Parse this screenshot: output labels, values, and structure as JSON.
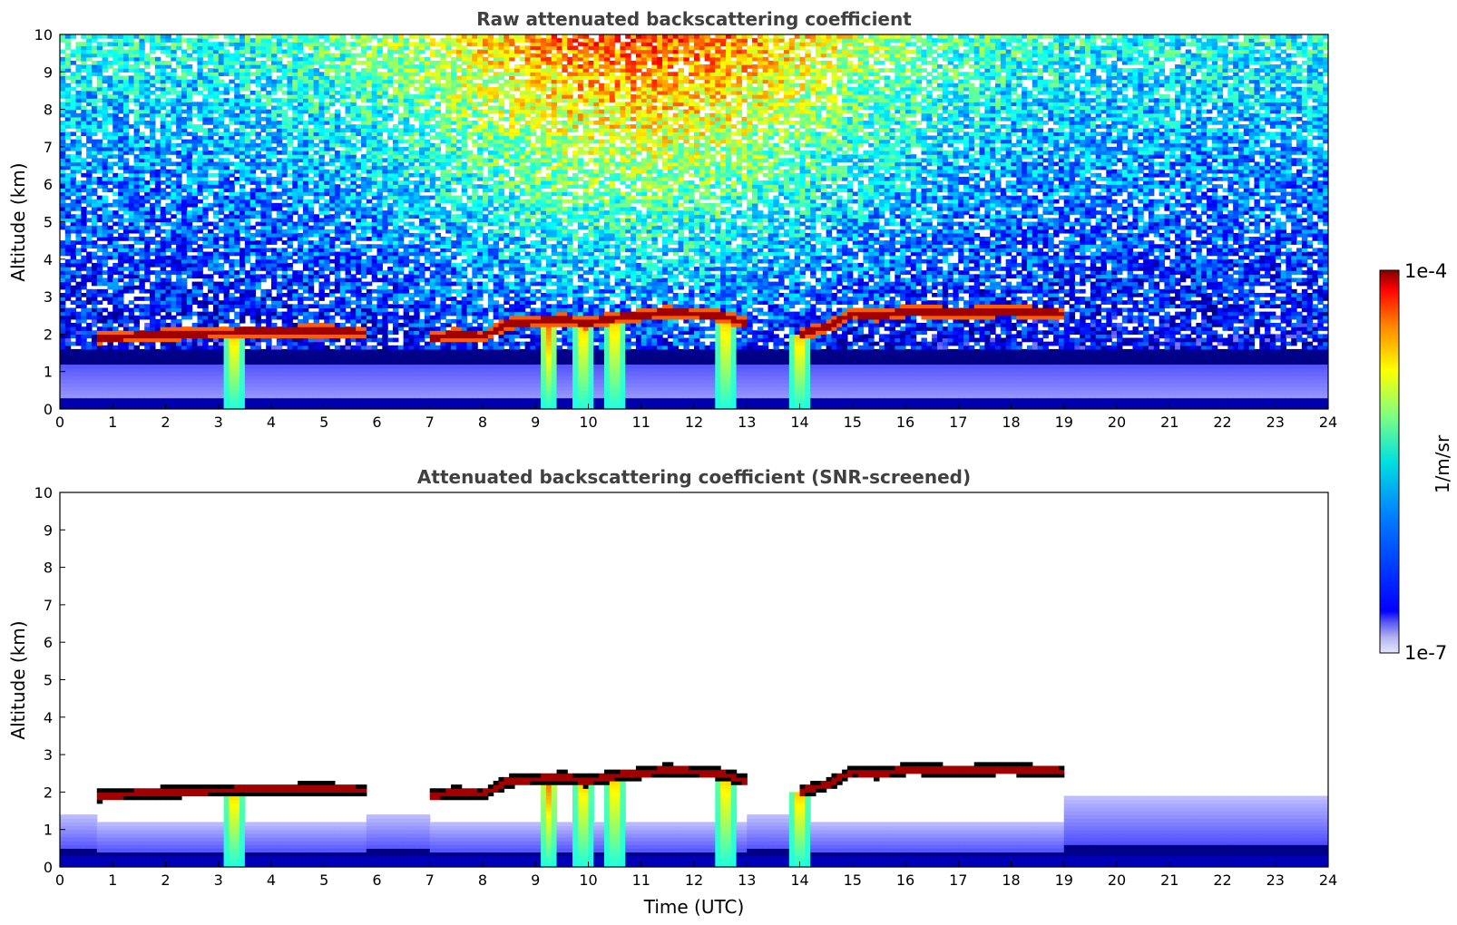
{
  "chart_data": [
    {
      "type": "heatmap",
      "title": "Raw attenuated backscattering coefficient",
      "xlabel": "",
      "ylabel": "Altitude (km)",
      "xlim": [
        0,
        24
      ],
      "ylim": [
        0,
        10
      ],
      "x_ticks": [
        "0",
        "1",
        "2",
        "3",
        "4",
        "5",
        "6",
        "7",
        "8",
        "9",
        "10",
        "11",
        "12",
        "13",
        "14",
        "15",
        "16",
        "17",
        "18",
        "19",
        "20",
        "21",
        "22",
        "23",
        "24"
      ],
      "y_ticks": [
        "0",
        "1",
        "2",
        "3",
        "4",
        "5",
        "6",
        "7",
        "8",
        "9",
        "10"
      ],
      "grid": false,
      "screened": false,
      "features": {
        "cloud_layer_km": [
          [
            0.7,
            1.9
          ],
          [
            1.5,
            1.97
          ],
          [
            2.5,
            2.02
          ],
          [
            3.0,
            2.05
          ],
          [
            4.0,
            2.08
          ],
          [
            5.0,
            2.1
          ],
          [
            5.8,
            2.05
          ],
          [
            7.0,
            1.9
          ],
          [
            7.5,
            2.0
          ],
          [
            8.0,
            1.95
          ],
          [
            8.5,
            2.3
          ],
          [
            9.0,
            2.35
          ],
          [
            9.5,
            2.4
          ],
          [
            10.0,
            2.3
          ],
          [
            10.5,
            2.45
          ],
          [
            11.0,
            2.5
          ],
          [
            11.5,
            2.6
          ],
          [
            12.0,
            2.55
          ],
          [
            12.5,
            2.5
          ],
          [
            13.0,
            2.3
          ],
          [
            14.0,
            2.0
          ],
          [
            14.5,
            2.2
          ],
          [
            15.0,
            2.55
          ],
          [
            15.5,
            2.5
          ],
          [
            16.0,
            2.62
          ],
          [
            17.0,
            2.58
          ],
          [
            18.0,
            2.62
          ],
          [
            19.0,
            2.55
          ]
        ],
        "precip_fall_streaks_utc": [
          3.3,
          9.25,
          9.9,
          10.5,
          12.6,
          14.0
        ]
      }
    },
    {
      "type": "heatmap",
      "title": "Attenuated backscattering coefficient (SNR-screened)",
      "xlabel": "Time (UTC)",
      "ylabel": "Altitude (km)",
      "xlim": [
        0,
        24
      ],
      "ylim": [
        0,
        10
      ],
      "x_ticks": [
        "0",
        "1",
        "2",
        "3",
        "4",
        "5",
        "6",
        "7",
        "8",
        "9",
        "10",
        "11",
        "12",
        "13",
        "14",
        "15",
        "16",
        "17",
        "18",
        "19",
        "20",
        "21",
        "22",
        "23",
        "24"
      ],
      "y_ticks": [
        "0",
        "1",
        "2",
        "3",
        "4",
        "5",
        "6",
        "7",
        "8",
        "9",
        "10"
      ],
      "grid": false,
      "screened": true
    }
  ],
  "colorbar": {
    "label": "1/m/sr",
    "max_label": "1e-4",
    "min_label": "1e-7",
    "scale": "log",
    "colormap": "jet"
  }
}
